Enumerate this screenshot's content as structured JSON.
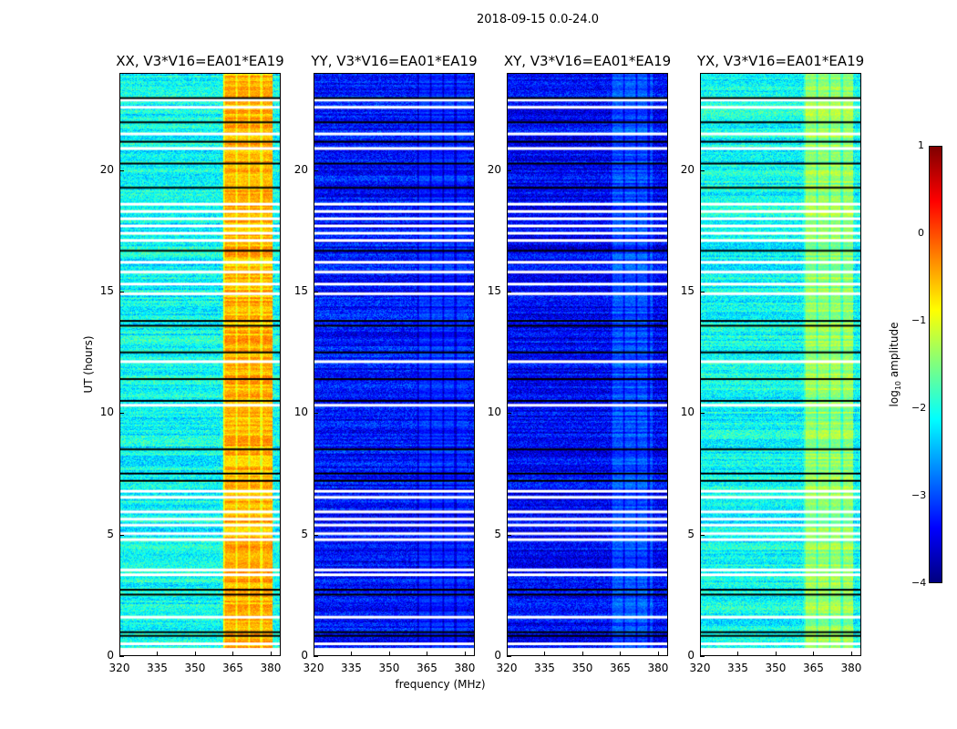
{
  "chart_data": {
    "type": "heatmap",
    "title": "2018-09-15 0.0-24.0",
    "xlabel": "frequency (MHz)",
    "ylabel": "UT (hours)",
    "xlim": [
      320,
      384
    ],
    "ylim": [
      0,
      24
    ],
    "xticks": [
      320,
      335,
      350,
      365,
      380
    ],
    "yticks": [
      0,
      5,
      10,
      15,
      20
    ],
    "colorbar": {
      "label_main": "log",
      "label_sub": "10",
      "label_rest": " amplitude",
      "range": [
        -4,
        1
      ],
      "ticks": [
        1,
        0,
        -1,
        -2,
        -3,
        -4
      ],
      "colormap": "jet"
    },
    "panels": [
      {
        "title": "XX, V3*V16=EA01*EA19",
        "background_log_amp": -2.1,
        "band_mhz": [
          361,
          381
        ],
        "band_log_amp": -0.5
      },
      {
        "title": "YY, V3*V16=EA01*EA19",
        "background_log_amp": -3.3,
        "band_mhz": [
          361,
          381
        ],
        "band_log_amp": -3.2
      },
      {
        "title": "XY, V3*V16=EA01*EA19",
        "background_log_amp": -3.4,
        "band_mhz": [
          361,
          378
        ],
        "band_log_amp": -3.0
      },
      {
        "title": "YX, V3*V16=EA01*EA19",
        "background_log_amp": -2.1,
        "band_mhz": [
          361,
          381
        ],
        "band_log_amp": -1.4
      }
    ],
    "flagged_ut_white": [
      0.45,
      1.55,
      3.3,
      3.5,
      4.75,
      5.0,
      5.35,
      5.6,
      5.9,
      6.5,
      6.75,
      10.3,
      12.1,
      14.9,
      15.3,
      15.8,
      16.2,
      17.1,
      17.4,
      17.7,
      18.0,
      18.3,
      18.6,
      20.9,
      21.5,
      22.6,
      22.9
    ],
    "flagged_ut_black": [
      0.8,
      0.95,
      2.5,
      2.7,
      7.2,
      7.5,
      8.5,
      10.5,
      11.4,
      12.5,
      13.6,
      13.8,
      16.7,
      19.3,
      20.3,
      21.2,
      22.0,
      23.0
    ]
  }
}
